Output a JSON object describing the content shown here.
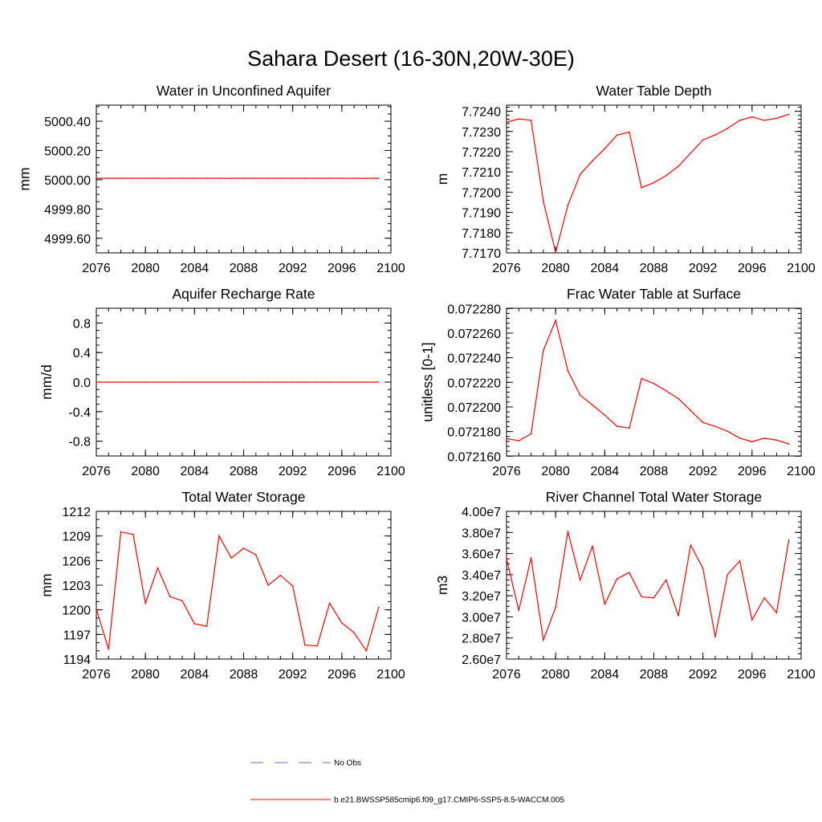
{
  "title": "Sahara Desert (16-30N,20W-30E)",
  "chart_data": [
    {
      "type": "line",
      "title": "Water in Unconfined Aquifer",
      "ylabel": "mm",
      "xlim": [
        2076,
        2100
      ],
      "xticks": [
        2076,
        2080,
        2084,
        2088,
        2092,
        2096,
        2100
      ],
      "xtick_labels": [
        "2076",
        "2080",
        "2084",
        "2088",
        "2092",
        "2096",
        "2100"
      ],
      "ylim": [
        4999.5,
        5000.51
      ],
      "yticks": [
        4999.6,
        4999.8,
        5000.0,
        5000.2,
        5000.4
      ],
      "ytick_labels": [
        "4999.60",
        "4999.80",
        "5000.00",
        "5000.20",
        "5000.40"
      ],
      "yminor": 0.05,
      "series": [
        {
          "color": "#ff0000",
          "x": [
            2076,
            2077,
            2078,
            2079,
            2080,
            2081,
            2082,
            2083,
            2084,
            2085,
            2086,
            2087,
            2088,
            2089,
            2090,
            2091,
            2092,
            2093,
            2094,
            2095,
            2096,
            2097,
            2098,
            2099
          ],
          "y": [
            5000.01,
            5000.01,
            5000.01,
            5000.01,
            5000.01,
            5000.01,
            5000.01,
            5000.01,
            5000.01,
            5000.01,
            5000.01,
            5000.01,
            5000.01,
            5000.01,
            5000.01,
            5000.01,
            5000.01,
            5000.01,
            5000.01,
            5000.01,
            5000.01,
            5000.01,
            5000.01,
            5000.01
          ]
        }
      ]
    },
    {
      "type": "line",
      "title": "Water Table Depth",
      "ylabel": "m",
      "xlim": [
        2076,
        2100
      ],
      "xticks": [
        2076,
        2080,
        2084,
        2088,
        2092,
        2096,
        2100
      ],
      "xtick_labels": [
        "2076",
        "2080",
        "2084",
        "2088",
        "2092",
        "2096",
        "2100"
      ],
      "ylim": [
        7.717,
        7.7243
      ],
      "yticks": [
        7.717,
        7.718,
        7.719,
        7.72,
        7.721,
        7.722,
        7.723,
        7.724
      ],
      "ytick_labels": [
        "7.7170",
        "7.7180",
        "7.7190",
        "7.7200",
        "7.7210",
        "7.7220",
        "7.7230",
        "7.7240"
      ],
      "yminor": 0.0002,
      "series": [
        {
          "color": "#ff0000",
          "x": [
            2076,
            2077,
            2078,
            2079,
            2080,
            2081,
            2082,
            2083,
            2084,
            2085,
            2086,
            2087,
            2088,
            2089,
            2090,
            2091,
            2092,
            2093,
            2094,
            2095,
            2096,
            2097,
            2098,
            2099
          ],
          "y": [
            7.72345,
            7.72362,
            7.72355,
            7.71955,
            7.71702,
            7.71935,
            7.72088,
            7.72155,
            7.72215,
            7.72282,
            7.72297,
            7.72022,
            7.72047,
            7.72082,
            7.72128,
            7.72193,
            7.72258,
            7.72283,
            7.72315,
            7.72355,
            7.72372,
            7.72355,
            7.72365,
            7.72385
          ]
        }
      ]
    },
    {
      "type": "line",
      "title": "Aquifer Recharge Rate",
      "ylabel": "mm/d",
      "xlim": [
        2076,
        2100
      ],
      "xticks": [
        2076,
        2080,
        2084,
        2088,
        2092,
        2096,
        2100
      ],
      "xtick_labels": [
        "2076",
        "2080",
        "2084",
        "2088",
        "2092",
        "2096",
        "2100"
      ],
      "ylim": [
        -1.0,
        1.0
      ],
      "yticks": [
        -0.8,
        -0.4,
        0.0,
        0.4,
        0.8
      ],
      "ytick_labels": [
        "-0.8",
        "-0.4",
        "0.0",
        "0.4",
        "0.8"
      ],
      "yminor": 0.1,
      "series": [
        {
          "color": "#ff0000",
          "x": [
            2076,
            2077,
            2078,
            2079,
            2080,
            2081,
            2082,
            2083,
            2084,
            2085,
            2086,
            2087,
            2088,
            2089,
            2090,
            2091,
            2092,
            2093,
            2094,
            2095,
            2096,
            2097,
            2098,
            2099
          ],
          "y": [
            0,
            0,
            0,
            0,
            0,
            0,
            0,
            0,
            0,
            0,
            0,
            0,
            0,
            0,
            0,
            0,
            0,
            0,
            0,
            0,
            0,
            0,
            0,
            0
          ]
        }
      ]
    },
    {
      "type": "line",
      "title": "Frac Water Table at Surface",
      "ylabel": "unitless [0-1]",
      "xlim": [
        2076,
        2100
      ],
      "xticks": [
        2076,
        2080,
        2084,
        2088,
        2092,
        2096,
        2100
      ],
      "xtick_labels": [
        "2076",
        "2080",
        "2084",
        "2088",
        "2092",
        "2096",
        "2100"
      ],
      "ylim": [
        0.0721602,
        0.0722802
      ],
      "yticks": [
        0.07216,
        0.07218,
        0.0722,
        0.07222,
        0.07224,
        0.07226,
        0.07228
      ],
      "ytick_labels": [
        "0.072160",
        "0.072180",
        "0.072200",
        "0.072220",
        "0.072240",
        "0.072260",
        "0.072280"
      ],
      "yminor": 4e-06,
      "series": [
        {
          "color": "#ff0000",
          "x": [
            2076,
            2077,
            2078,
            2079,
            2080,
            2081,
            2082,
            2083,
            2084,
            2085,
            2086,
            2087,
            2088,
            2089,
            2090,
            2091,
            2092,
            2093,
            2094,
            2095,
            2096,
            2097,
            2098,
            2099
          ],
          "y": [
            0.0721743,
            0.0721726,
            0.0721782,
            0.0722459,
            0.0722704,
            0.0722293,
            0.0722095,
            0.0722016,
            0.0721934,
            0.0721844,
            0.0721828,
            0.0722231,
            0.072219,
            0.0722131,
            0.0722068,
            0.0721971,
            0.0721874,
            0.0721842,
            0.0721803,
            0.0721747,
            0.0721718,
            0.0721746,
            0.0721731,
            0.0721699
          ]
        }
      ]
    },
    {
      "type": "line",
      "title": "Total Water Storage",
      "ylabel": "mm",
      "xlim": [
        2076,
        2100
      ],
      "xticks": [
        2076,
        2080,
        2084,
        2088,
        2092,
        2096,
        2100
      ],
      "xtick_labels": [
        "2076",
        "2080",
        "2084",
        "2088",
        "2092",
        "2096",
        "2100"
      ],
      "ylim": [
        1194,
        1212
      ],
      "yticks": [
        1194,
        1197,
        1200,
        1203,
        1206,
        1209,
        1212
      ],
      "ytick_labels": [
        "1194",
        "1197",
        "1200",
        "1203",
        "1206",
        "1209",
        "1212"
      ],
      "yminor": 1,
      "series": [
        {
          "color": "#ff0000",
          "x": [
            2076,
            2077,
            2078,
            2079,
            2080,
            2081,
            2082,
            2083,
            2084,
            2085,
            2086,
            2087,
            2088,
            2089,
            2090,
            2091,
            2092,
            2093,
            2094,
            2095,
            2096,
            2097,
            2098,
            2099
          ],
          "y": [
            1200.1,
            1195.2,
            1209.5,
            1209.2,
            1200.8,
            1205.1,
            1201.6,
            1201.1,
            1198.3,
            1198.0,
            1209.0,
            1206.3,
            1207.5,
            1206.7,
            1203.0,
            1204.2,
            1202.9,
            1195.7,
            1195.6,
            1200.8,
            1198.4,
            1197.2,
            1195.0,
            1200.3
          ]
        }
      ]
    },
    {
      "type": "line",
      "title": "River Channel Total Water Storage",
      "ylabel": "m3",
      "xlim": [
        2076,
        2100
      ],
      "xticks": [
        2076,
        2080,
        2084,
        2088,
        2092,
        2096,
        2100
      ],
      "xtick_labels": [
        "2076",
        "2080",
        "2084",
        "2088",
        "2092",
        "2096",
        "2100"
      ],
      "ylim": [
        26000000,
        40000000
      ],
      "yticks": [
        26000000,
        28000000,
        30000000,
        32000000,
        34000000,
        36000000,
        38000000,
        40000000
      ],
      "ytick_labels": [
        "2.60e7",
        "2.80e7",
        "3.00e7",
        "3.20e7",
        "3.40e7",
        "3.60e7",
        "3.80e7",
        "4.00e7"
      ],
      "yminor": 500000,
      "series": [
        {
          "color": "#ff0000",
          "x": [
            2076,
            2077,
            2078,
            2079,
            2080,
            2081,
            2082,
            2083,
            2084,
            2085,
            2086,
            2087,
            2088,
            2089,
            2090,
            2091,
            2092,
            2093,
            2094,
            2095,
            2096,
            2097,
            2098,
            2099
          ],
          "y": [
            35500000,
            30600000,
            35600000,
            27800000,
            30900000,
            38100000,
            33500000,
            36700000,
            31200000,
            33600000,
            34200000,
            31900000,
            31800000,
            33500000,
            30100000,
            36800000,
            34600000,
            28100000,
            34000000,
            35300000,
            29700000,
            31800000,
            30400000,
            37300000
          ]
        }
      ]
    }
  ],
  "legend": [
    {
      "label": "No Obs",
      "color": "#6b6bb5",
      "style": "dashed"
    },
    {
      "label": "b.e21.BWSSP585cmip6.f09_g17.CMIP6-SSP5-8.5-WACCM.005",
      "color": "#ff0000",
      "style": "solid"
    }
  ]
}
